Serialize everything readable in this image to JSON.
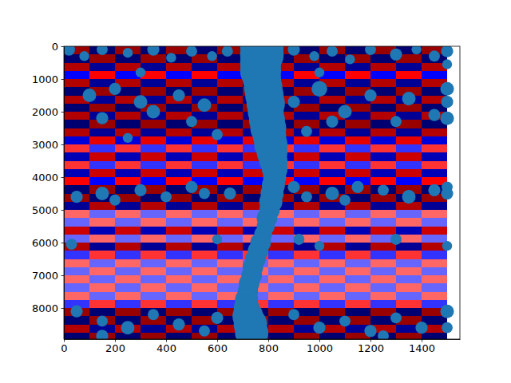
{
  "chart_data": {
    "type": "scatter",
    "color": "#1f77b4",
    "xlim": [
      0,
      1550
    ],
    "ylim": [
      8950,
      0
    ],
    "xticks": [
      0,
      200,
      400,
      600,
      800,
      1000,
      1200,
      1400
    ],
    "yticks": [
      0,
      1000,
      2000,
      3000,
      4000,
      5000,
      6000,
      7000,
      8000
    ],
    "image": {
      "vlim": [
        -1,
        1
      ],
      "x_edges": [
        0,
        100,
        200,
        300,
        400,
        500,
        600,
        700,
        800,
        900,
        1000,
        1100,
        1200,
        1300,
        1400,
        1500
      ],
      "y_edges": [
        0,
        250,
        500,
        750,
        1000,
        1250,
        1500,
        1750,
        2000,
        2250,
        2500,
        2750,
        3000,
        3250,
        3500,
        3750,
        4000,
        4250,
        4500,
        4750,
        5000,
        5250,
        5500,
        5750,
        6000,
        6250,
        6500,
        6750,
        7000,
        7250,
        7500,
        7750,
        8000,
        8250,
        8500,
        8750,
        9000
      ],
      "values": [
        [
          0.9,
          -0.9,
          0.9,
          -0.9,
          0.9,
          -0.9,
          0.9,
          -0.9,
          0.9,
          -0.9,
          0.9,
          -0.9,
          0.9,
          -0.9,
          0.9
        ],
        [
          -0.9,
          0.9,
          -0.9,
          0.9,
          -0.9,
          0.9,
          -0.9,
          0.9,
          -0.9,
          0.9,
          -0.9,
          0.9,
          -0.9,
          0.9,
          -0.9
        ],
        [
          0.8,
          -0.8,
          0.8,
          -0.8,
          0.8,
          -0.8,
          0.8,
          -0.8,
          0.8,
          -0.8,
          0.8,
          -0.8,
          0.8,
          -0.8,
          0.8
        ],
        [
          -0.5,
          0.5,
          -0.5,
          0.5,
          -0.5,
          0.5,
          -0.5,
          0.5,
          -0.5,
          0.5,
          -0.5,
          0.5,
          -0.5,
          0.5,
          -0.5
        ],
        [
          0.8,
          -0.8,
          0.8,
          -0.8,
          0.8,
          -0.8,
          0.8,
          -0.8,
          0.8,
          -0.8,
          0.8,
          -0.8,
          0.8,
          -0.8,
          0.8
        ],
        [
          -0.9,
          0.9,
          -0.9,
          0.9,
          -0.9,
          0.9,
          -0.9,
          0.9,
          -0.9,
          0.9,
          -0.9,
          0.9,
          -0.9,
          0.9,
          -0.9
        ],
        [
          0.8,
          -0.8,
          0.8,
          -0.8,
          0.8,
          -0.8,
          0.8,
          -0.8,
          0.8,
          -0.8,
          0.8,
          -0.8,
          0.8,
          -0.8,
          0.8
        ],
        [
          -0.9,
          0.9,
          -0.9,
          0.9,
          -0.9,
          0.9,
          -0.9,
          0.9,
          -0.9,
          0.9,
          -0.9,
          0.9,
          -0.9,
          0.9,
          -0.9
        ],
        [
          0.8,
          -0.8,
          0.8,
          -0.8,
          0.8,
          -0.8,
          0.8,
          -0.8,
          0.8,
          -0.8,
          0.8,
          -0.8,
          0.8,
          -0.8,
          0.8
        ],
        [
          -0.9,
          0.9,
          -0.9,
          0.9,
          -0.9,
          0.9,
          -0.9,
          0.9,
          -0.9,
          0.9,
          -0.9,
          0.9,
          -0.9,
          0.9,
          -0.9
        ],
        [
          0.8,
          -0.8,
          0.8,
          -0.8,
          0.8,
          -0.8,
          0.8,
          -0.8,
          0.8,
          -0.8,
          0.8,
          -0.8,
          0.8,
          -0.8,
          0.8
        ],
        [
          -0.6,
          0.6,
          -0.6,
          0.6,
          -0.6,
          0.6,
          -0.6,
          0.6,
          -0.6,
          0.6,
          -0.6,
          0.6,
          -0.6,
          0.6,
          -0.6
        ],
        [
          0.4,
          -0.4,
          0.4,
          -0.4,
          0.4,
          -0.4,
          0.4,
          -0.4,
          0.4,
          -0.4,
          0.4,
          -0.4,
          0.4,
          -0.4,
          0.4
        ],
        [
          -0.7,
          0.7,
          -0.7,
          0.7,
          -0.7,
          0.7,
          -0.7,
          0.7,
          -0.7,
          0.7,
          -0.7,
          0.7,
          -0.7,
          0.7,
          -0.7
        ],
        [
          0.4,
          -0.4,
          0.4,
          -0.4,
          0.4,
          -0.4,
          0.4,
          -0.4,
          0.4,
          -0.4,
          0.4,
          -0.4,
          0.4,
          -0.4,
          0.4
        ],
        [
          -0.7,
          0.7,
          -0.7,
          0.7,
          -0.7,
          0.7,
          -0.7,
          0.7,
          -0.7,
          0.7,
          -0.7,
          0.7,
          -0.7,
          0.7,
          -0.7
        ],
        [
          0.5,
          -0.5,
          0.5,
          -0.5,
          0.5,
          -0.5,
          0.5,
          -0.5,
          0.5,
          -0.5,
          0.5,
          -0.5,
          0.5,
          -0.5,
          0.5
        ],
        [
          -0.9,
          0.9,
          -0.9,
          0.9,
          -0.9,
          0.9,
          -0.9,
          0.9,
          -0.9,
          0.9,
          -0.9,
          0.9,
          -0.9,
          0.9,
          -0.9
        ],
        [
          0.9,
          -0.9,
          0.9,
          -0.9,
          0.9,
          -0.9,
          0.9,
          -0.9,
          0.9,
          -0.9,
          0.9,
          -0.9,
          0.9,
          -0.9,
          0.9
        ],
        [
          -0.8,
          0.8,
          -0.8,
          0.8,
          -0.8,
          0.8,
          -0.8,
          0.8,
          -0.8,
          0.8,
          -0.8,
          0.8,
          -0.8,
          0.8,
          -0.8
        ],
        [
          0.3,
          -0.3,
          0.3,
          -0.3,
          0.3,
          -0.3,
          0.3,
          -0.3,
          0.3,
          -0.3,
          0.3,
          -0.3,
          0.3,
          -0.3,
          0.3
        ],
        [
          -0.3,
          0.3,
          -0.3,
          0.3,
          -0.3,
          0.3,
          -0.3,
          0.3,
          -0.3,
          0.3,
          -0.3,
          0.3,
          -0.3,
          0.3,
          -0.3
        ],
        [
          0.7,
          -0.7,
          0.7,
          -0.7,
          0.7,
          -0.7,
          0.7,
          -0.7,
          0.7,
          -0.7,
          0.7,
          -0.7,
          0.7,
          -0.7,
          0.7
        ],
        [
          -0.3,
          0.3,
          -0.3,
          0.3,
          -0.3,
          0.3,
          -0.3,
          0.3,
          -0.3,
          0.3,
          -0.3,
          0.3,
          -0.3,
          0.3,
          -0.3
        ],
        [
          0.8,
          -0.8,
          0.8,
          -0.8,
          0.8,
          -0.8,
          0.8,
          -0.8,
          0.8,
          -0.8,
          0.8,
          -0.8,
          0.8,
          -0.8,
          0.8
        ],
        [
          -0.4,
          0.4,
          -0.4,
          0.4,
          -0.4,
          0.4,
          -0.4,
          0.4,
          -0.4,
          0.4,
          -0.4,
          0.4,
          -0.4,
          0.4,
          -0.4
        ],
        [
          0.3,
          -0.3,
          0.3,
          -0.3,
          0.3,
          -0.3,
          0.3,
          -0.3,
          0.3,
          -0.3,
          0.3,
          -0.3,
          0.3,
          -0.3,
          0.3
        ],
        [
          -0.3,
          0.3,
          -0.3,
          0.3,
          -0.3,
          0.3,
          -0.3,
          0.3,
          -0.3,
          0.3,
          -0.3,
          0.3,
          -0.3,
          0.3,
          -0.3
        ],
        [
          0.3,
          -0.3,
          0.3,
          -0.3,
          0.3,
          -0.3,
          0.3,
          -0.3,
          0.3,
          -0.3,
          0.3,
          -0.3,
          0.3,
          -0.3,
          0.3
        ],
        [
          -0.3,
          0.3,
          -0.3,
          0.3,
          -0.3,
          0.3,
          -0.3,
          0.3,
          -0.3,
          0.3,
          -0.3,
          0.3,
          -0.3,
          0.3,
          -0.3
        ],
        [
          0.3,
          -0.3,
          0.3,
          -0.3,
          0.3,
          -0.3,
          0.3,
          -0.3,
          0.3,
          -0.3,
          0.3,
          -0.3,
          0.3,
          -0.3,
          0.3
        ],
        [
          -0.4,
          0.4,
          -0.4,
          0.4,
          -0.4,
          0.4,
          -0.4,
          0.4,
          -0.4,
          0.4,
          -0.4,
          0.4,
          -0.4,
          0.4,
          -0.4
        ],
        [
          0.9,
          -0.9,
          0.9,
          -0.9,
          0.9,
          -0.9,
          0.9,
          -0.9,
          0.9,
          -0.9,
          0.9,
          -0.9,
          0.9,
          -0.9,
          0.9
        ],
        [
          -0.9,
          0.9,
          -0.9,
          0.9,
          -0.9,
          0.9,
          -0.9,
          0.9,
          -0.9,
          0.9,
          -0.9,
          0.9,
          -0.9,
          0.9,
          -0.9
        ],
        [
          0.8,
          -0.8,
          0.8,
          -0.8,
          0.8,
          -0.8,
          0.8,
          -0.8,
          0.8,
          -0.8,
          0.8,
          -0.8,
          0.8,
          -0.8,
          0.8
        ],
        [
          -0.9,
          0.9,
          -0.9,
          0.9,
          -0.9,
          0.9,
          -0.9,
          0.9,
          -0.9,
          0.9,
          -0.9,
          0.9,
          -0.9,
          0.9,
          -0.9
        ]
      ]
    },
    "x": [
      775,
      775,
      770,
      770,
      775,
      780,
      785,
      790,
      790,
      795,
      800,
      805,
      810,
      815,
      820,
      825,
      825,
      820,
      815,
      810,
      805,
      795,
      790,
      780,
      770,
      760,
      750,
      740,
      735,
      725,
      720,
      715,
      715,
      720,
      730,
      735,
      20,
      80,
      150,
      250,
      350,
      420,
      500,
      580,
      640,
      900,
      980,
      1050,
      1120,
      1200,
      1300,
      1380,
      1450,
      1500,
      1500,
      300,
      1000,
      100,
      200,
      300,
      150,
      350,
      450,
      500,
      550,
      600,
      250,
      900,
      1000,
      1100,
      1200,
      1350,
      1450,
      1500,
      1500,
      1500,
      950,
      1050,
      1300,
      50,
      150,
      200,
      300,
      400,
      500,
      550,
      650,
      900,
      950,
      1050,
      1150,
      1250,
      1350,
      1450,
      1500,
      1500,
      1100,
      30,
      920,
      1000,
      1300,
      1500,
      600,
      50,
      150,
      250,
      350,
      450,
      550,
      600,
      900,
      1000,
      1100,
      1200,
      1300,
      1400,
      1500,
      1500,
      150,
      1250
    ],
    "values": [
      0,
      250,
      500,
      750,
      1000,
      1250,
      1500,
      1750,
      2000,
      2250,
      2500,
      2750,
      3000,
      3250,
      3500,
      3750,
      4000,
      4250,
      4500,
      4750,
      5000,
      5250,
      5500,
      5750,
      6000,
      6250,
      6500,
      6750,
      7000,
      7250,
      7500,
      7750,
      8000,
      8250,
      8500,
      8750,
      100,
      300,
      100,
      200,
      100,
      350,
      150,
      300,
      150,
      100,
      300,
      150,
      400,
      100,
      250,
      100,
      300,
      150,
      550,
      800,
      800,
      1500,
      1300,
      1700,
      2200,
      2000,
      1500,
      2300,
      1800,
      2700,
      2800,
      1700,
      1300,
      2000,
      1500,
      1600,
      2100,
      1300,
      1700,
      2200,
      2600,
      2300,
      2300,
      4600,
      4500,
      4700,
      4400,
      4600,
      4300,
      4500,
      4500,
      4300,
      4600,
      4500,
      4300,
      4400,
      4600,
      4400,
      4300,
      4500,
      4700,
      6050,
      5900,
      6100,
      5900,
      6100,
      5900,
      8100,
      8400,
      8600,
      8200,
      8500,
      8700,
      8300,
      8200,
      8600,
      8400,
      8700,
      8300,
      8600,
      8100,
      8600,
      8850,
      8850
    ],
    "sizes": [
      1550,
      1550,
      1370,
      1370,
      1200,
      1200,
      1200,
      1200,
      1050,
      1050,
      1050,
      905,
      905,
      770,
      650,
      535,
      433,
      433,
      433,
      433,
      343,
      343,
      262,
      262,
      343,
      343,
      343,
      343,
      343,
      343,
      343,
      433,
      535,
      770,
      905,
      905,
      120,
      80,
      100,
      80,
      120,
      80,
      100,
      80,
      100,
      120,
      80,
      100,
      80,
      100,
      120,
      80,
      100,
      120,
      80,
      80,
      80,
      150,
      120,
      150,
      120,
      150,
      120,
      100,
      150,
      100,
      80,
      120,
      200,
      150,
      120,
      150,
      120,
      150,
      120,
      150,
      100,
      120,
      100,
      120,
      150,
      100,
      120,
      100,
      120,
      100,
      120,
      120,
      100,
      150,
      120,
      100,
      150,
      120,
      100,
      120,
      100,
      100,
      100,
      80,
      100,
      80,
      80,
      120,
      100,
      150,
      100,
      120,
      100,
      120,
      100,
      120,
      100,
      120,
      100,
      120,
      150,
      100,
      120,
      100
    ]
  }
}
